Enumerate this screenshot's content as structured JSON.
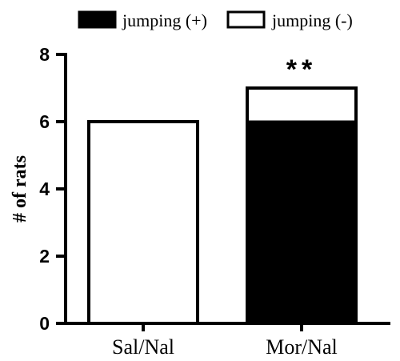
{
  "chart_data": {
    "type": "bar",
    "stacked": true,
    "categories": [
      "Sal/Nal",
      "Mor/Nal"
    ],
    "series": [
      {
        "name": "jumping (+)",
        "values": [
          0,
          6
        ],
        "color": "#000000"
      },
      {
        "name": "jumping (-)",
        "values": [
          6,
          1
        ],
        "color": "#ffffff"
      }
    ],
    "xlabel": "",
    "ylabel": "# of rats",
    "ylim": [
      0,
      8
    ],
    "yticks": [
      0,
      2,
      4,
      6,
      8
    ],
    "grid": false,
    "legend": "top-center",
    "annotations": [
      {
        "text": "**",
        "category": "Mor/Nal"
      }
    ]
  }
}
